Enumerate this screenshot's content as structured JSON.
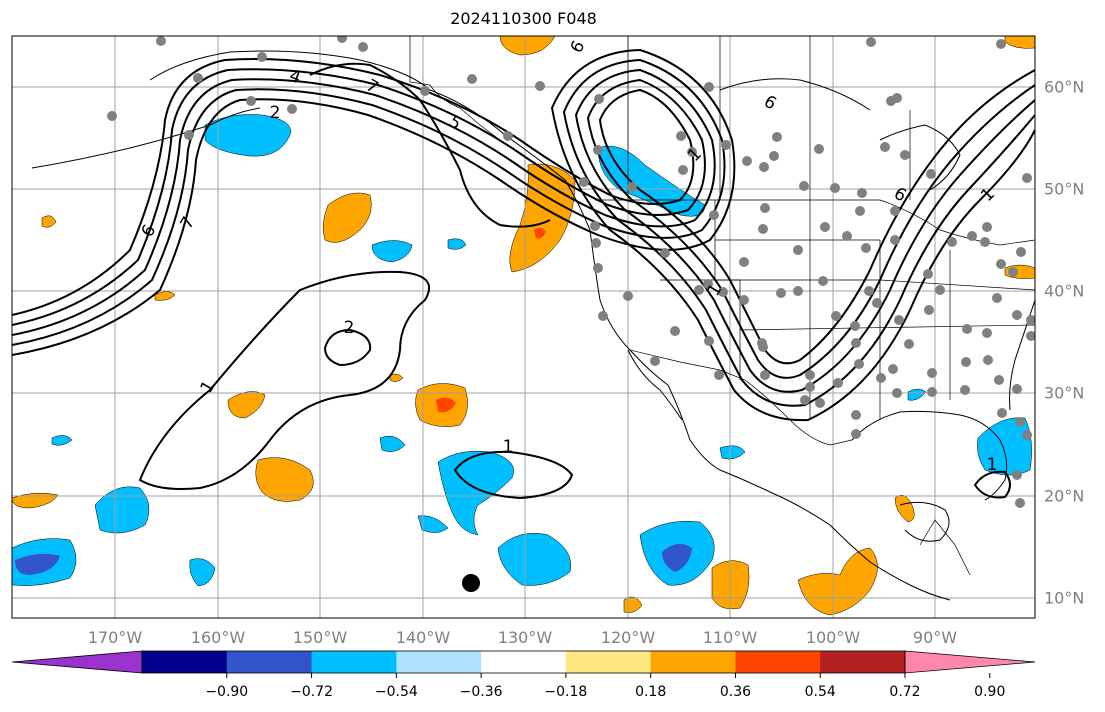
{
  "title": "2024110300 F048",
  "lon_labels": [
    "170°W",
    "160°W",
    "150°W",
    "140°W",
    "130°W",
    "120°W",
    "110°W",
    "100°W",
    "90°W"
  ],
  "lat_labels": [
    "60°N",
    "50°N",
    "40°N",
    "30°N",
    "20°N",
    "10°N"
  ],
  "contour_labels": [
    "1",
    "2",
    "1",
    "7",
    "6",
    "7",
    "5",
    "4",
    "2",
    "6",
    "1",
    "6",
    "1",
    "6",
    "1",
    "1"
  ],
  "colorbar": {
    "ticks": [
      "−0.90",
      "−0.72",
      "−0.54",
      "−0.36",
      "−0.18",
      "0.18",
      "0.36",
      "0.54",
      "0.72",
      "0.90"
    ],
    "colors": [
      "#9933cc",
      "#00008b",
      "#3355cc",
      "#00bfff",
      "#aee1ff",
      "#ffffff",
      "#ffe680",
      "#ffa500",
      "#ff4500",
      "#b22222",
      "#ff88aa"
    ]
  },
  "colors": {
    "grid": "#a0a0a0",
    "coast": "#000000",
    "contour": "#000000",
    "station_gray": "#808080",
    "neg_blue": "#00bfff",
    "neg_dark": "#3355cc",
    "pos_orange": "#ffa500",
    "pos_red": "#ff4500"
  }
}
